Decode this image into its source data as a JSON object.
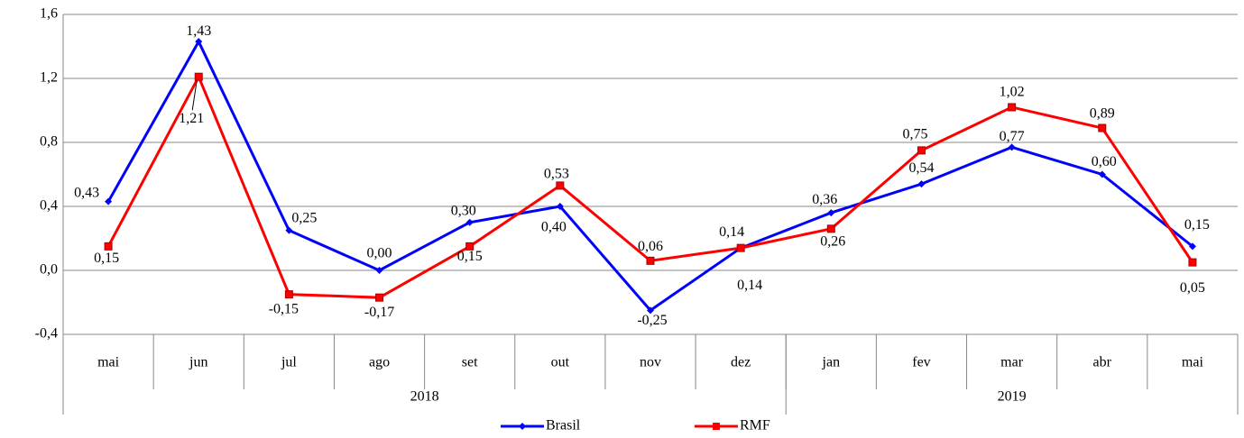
{
  "chart_data": {
    "type": "line",
    "categories": [
      "mai",
      "jun",
      "jul",
      "ago",
      "set",
      "out",
      "nov",
      "dez",
      "jan",
      "fev",
      "mar",
      "abr",
      "mai"
    ],
    "x_groups": [
      {
        "label": "2018",
        "count": 8
      },
      {
        "label": "2019",
        "count": 5
      }
    ],
    "series": [
      {
        "name": "Brasil",
        "color": "#0000ff",
        "marker": "diamond",
        "values": [
          0.43,
          1.43,
          0.25,
          0.0,
          0.3,
          0.4,
          -0.25,
          0.14,
          0.36,
          0.54,
          0.77,
          0.6,
          0.15
        ],
        "value_labels": [
          "0,43",
          "1,43",
          "0,25",
          "0,00",
          "0,30",
          "0,40",
          "-0,25",
          "0,14",
          "0,36",
          "0,54",
          "0,77",
          "0,60",
          "0,15"
        ]
      },
      {
        "name": "RMF",
        "color": "#ff0000",
        "marker": "square",
        "values": [
          0.15,
          1.21,
          -0.15,
          -0.17,
          0.15,
          0.53,
          0.06,
          0.14,
          0.26,
          0.75,
          1.02,
          0.89,
          0.05
        ],
        "value_labels": [
          "0,15",
          "1,21",
          "-0,15",
          "-0,17",
          "0,15",
          "0,53",
          "0,06",
          "0,14",
          "0,26",
          "0,75",
          "1,02",
          "0,89",
          "0,05"
        ]
      }
    ],
    "ylim": [
      -0.4,
      1.6
    ],
    "yticks": [
      {
        "value": -0.4,
        "label": "-0,4"
      },
      {
        "value": 0,
        "label": "0,0"
      },
      {
        "value": 0.4,
        "label": "0,4"
      },
      {
        "value": 0.8,
        "label": "0,8"
      },
      {
        "value": 1.2,
        "label": "1,2"
      },
      {
        "value": 1.6,
        "label": "1,6"
      }
    ],
    "grid": true,
    "negative_color": "#ff0000",
    "legend": "bottom"
  }
}
